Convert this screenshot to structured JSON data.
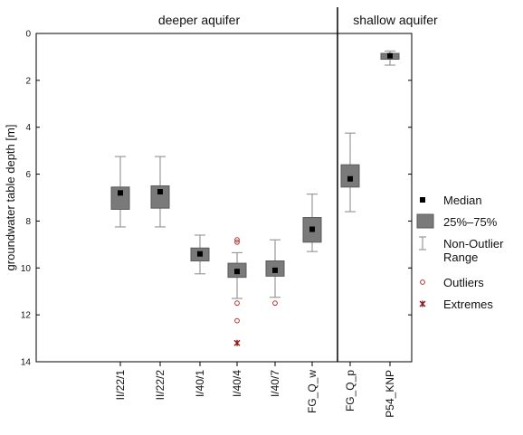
{
  "chart_data": {
    "type": "boxplot",
    "ylabel": "groundwater table depth [m]",
    "y_axis": {
      "min": 0,
      "max": 14,
      "ticks": [
        0,
        2,
        4,
        6,
        8,
        10,
        12,
        14
      ],
      "inverted": true
    },
    "sections": [
      {
        "label": "deeper aquifer",
        "categories": [
          "II/22/1",
          "II/22/2",
          "I/40/1",
          "I/40/4",
          "I/40/7",
          "FG_Q_w"
        ]
      },
      {
        "label": "shallow aquifer",
        "categories": [
          "FG_Q_p",
          "P54_KNP"
        ]
      }
    ],
    "categories": [
      "II/22/1",
      "II/22/2",
      "I/40/1",
      "I/40/4",
      "I/40/7",
      "FG_Q_w",
      "FG_Q_p",
      "P54_KNP"
    ],
    "series": [
      {
        "category": "II/22/1",
        "median": 6.8,
        "q1": 6.55,
        "q3": 7.5,
        "whisker_low": 5.25,
        "whisker_high": 8.25,
        "outliers": [],
        "extremes": []
      },
      {
        "category": "II/22/2",
        "median": 6.75,
        "q1": 6.5,
        "q3": 7.45,
        "whisker_low": 5.25,
        "whisker_high": 8.25,
        "outliers": [],
        "extremes": []
      },
      {
        "category": "I/40/1",
        "median": 9.4,
        "q1": 9.15,
        "q3": 9.7,
        "whisker_low": 8.6,
        "whisker_high": 10.25,
        "outliers": [],
        "extremes": []
      },
      {
        "category": "I/40/4",
        "median": 10.15,
        "q1": 9.8,
        "q3": 10.4,
        "whisker_low": 9.35,
        "whisker_high": 11.3,
        "outliers": [
          8.8,
          8.9,
          11.5,
          12.25
        ],
        "extremes": [
          13.2
        ]
      },
      {
        "category": "I/40/7",
        "median": 10.1,
        "q1": 9.7,
        "q3": 10.35,
        "whisker_low": 8.8,
        "whisker_high": 11.25,
        "outliers": [
          11.5
        ],
        "extremes": []
      },
      {
        "category": "FG_Q_w",
        "median": 8.35,
        "q1": 7.85,
        "q3": 8.9,
        "whisker_low": 6.85,
        "whisker_high": 9.3,
        "outliers": [],
        "extremes": []
      },
      {
        "category": "FG_Q_p",
        "median": 6.2,
        "q1": 5.6,
        "q3": 6.55,
        "whisker_low": 4.25,
        "whisker_high": 7.6,
        "outliers": [],
        "extremes": []
      },
      {
        "category": "P54_KNP",
        "median": 0.95,
        "q1": 0.85,
        "q3": 1.1,
        "whisker_low": 0.75,
        "whisker_high": 1.35,
        "outliers": [],
        "extremes": []
      }
    ],
    "legend": {
      "position": "right",
      "entries": [
        {
          "key": "median",
          "label": "Median"
        },
        {
          "key": "box",
          "label": "25%–75%"
        },
        {
          "key": "whisker",
          "label": "Non-Outlier\nRange"
        },
        {
          "key": "outlier",
          "label": "Outliers"
        },
        {
          "key": "extreme",
          "label": "Extremes"
        }
      ]
    },
    "colors": {
      "box_fill": "#7a7a7a",
      "box_stroke": "#5a5a5a",
      "median": "#000000",
      "whisker": "#9a9a9a",
      "outlier": "#b03030",
      "extreme": "#8b1a1a",
      "frame": "#000000",
      "divider": "#000000"
    }
  }
}
